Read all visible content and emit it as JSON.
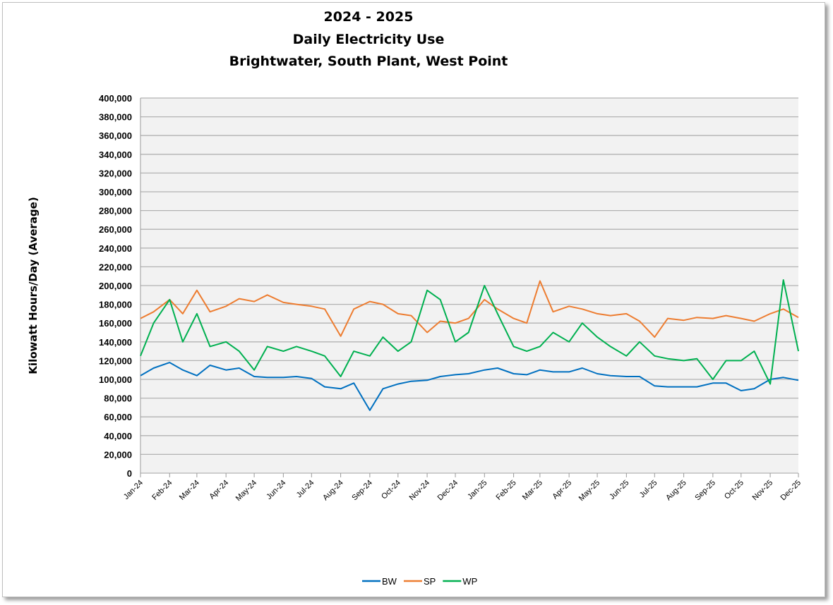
{
  "chart_data": {
    "type": "line",
    "title": [
      "2024 - 2025",
      "Daily Electricity Use",
      "Brightwater, South Plant, West Point"
    ],
    "xlabel": "",
    "ylabel": "Kilowatt Hours/Day (Average)",
    "ylim": [
      0,
      400000
    ],
    "yticks": [
      "0",
      "20,000",
      "40,000",
      "60,000",
      "80,000",
      "100,000",
      "120,000",
      "140,000",
      "160,000",
      "180,000",
      "200,000",
      "220,000",
      "240,000",
      "260,000",
      "280,000",
      "300,000",
      "320,000",
      "340,000",
      "360,000",
      "380,000",
      "400,000"
    ],
    "xticks": [
      "Jan-24",
      "Feb-24",
      "Mar-24",
      "Apr-24",
      "May-24",
      "Jun-24",
      "Jul-24",
      "Aug-24",
      "Sep-24",
      "Oct-24",
      "Nov-24",
      "Dec-24",
      "Jan-25",
      "Feb-25",
      "Mar-25",
      "Apr-25",
      "May-25",
      "Jun-25",
      "Jul-25",
      "Aug-25",
      "Sep-25",
      "Oct-25",
      "Nov-25",
      "Dec-25"
    ],
    "grid": true,
    "legend": "bottom",
    "x": [
      "2024-01-01",
      "2024-01-15",
      "2024-02-01",
      "2024-02-15",
      "2024-03-01",
      "2024-03-15",
      "2024-04-01",
      "2024-04-15",
      "2024-05-01",
      "2024-05-15",
      "2024-06-01",
      "2024-06-15",
      "2024-07-01",
      "2024-07-15",
      "2024-08-01",
      "2024-08-15",
      "2024-09-01",
      "2024-09-15",
      "2024-10-01",
      "2024-10-15",
      "2024-11-01",
      "2024-11-15",
      "2024-12-01",
      "2024-12-15",
      "2025-01-01",
      "2025-01-15",
      "2025-02-01",
      "2025-02-15",
      "2025-03-01",
      "2025-03-15",
      "2025-04-01",
      "2025-04-15",
      "2025-05-01",
      "2025-05-15",
      "2025-06-01",
      "2025-06-15",
      "2025-07-01",
      "2025-07-15",
      "2025-08-01",
      "2025-08-15",
      "2025-09-01",
      "2025-09-15",
      "2025-10-01",
      "2025-10-15",
      "2025-11-01",
      "2025-11-15",
      "2025-12-01"
    ],
    "series": [
      {
        "name": "BW",
        "color": "#0070c0",
        "values": [
          104000,
          112000,
          118000,
          110000,
          104000,
          115000,
          110000,
          112000,
          103000,
          102000,
          102000,
          103000,
          101000,
          92000,
          90000,
          96000,
          67000,
          90000,
          95000,
          98000,
          99000,
          103000,
          105000,
          106000,
          110000,
          112000,
          106000,
          105000,
          110000,
          108000,
          108000,
          112000,
          106000,
          104000,
          103000,
          103000,
          93000,
          92000,
          92000,
          92000,
          96000,
          96000,
          88000,
          90000,
          100000,
          102000,
          99000
        ]
      },
      {
        "name": "SP",
        "color": "#ed7d31",
        "values": [
          165000,
          172000,
          185000,
          170000,
          195000,
          172000,
          178000,
          186000,
          183000,
          190000,
          182000,
          180000,
          178000,
          175000,
          146000,
          175000,
          183000,
          180000,
          170000,
          168000,
          150000,
          162000,
          160000,
          165000,
          185000,
          175000,
          165000,
          160000,
          205000,
          172000,
          178000,
          175000,
          170000,
          168000,
          170000,
          162000,
          145000,
          165000,
          163000,
          166000,
          165000,
          168000,
          165000,
          162000,
          170000,
          175000,
          166000
        ]
      },
      {
        "name": "WP",
        "color": "#00b050",
        "values": [
          125000,
          160000,
          185000,
          140000,
          170000,
          135000,
          140000,
          130000,
          110000,
          135000,
          130000,
          135000,
          130000,
          125000,
          103000,
          130000,
          125000,
          145000,
          130000,
          140000,
          195000,
          185000,
          140000,
          150000,
          200000,
          170000,
          135000,
          130000,
          135000,
          150000,
          140000,
          160000,
          145000,
          135000,
          125000,
          140000,
          125000,
          122000,
          120000,
          122000,
          100000,
          120000,
          120000,
          130000,
          95000,
          206000,
          130000
        ]
      }
    ]
  }
}
